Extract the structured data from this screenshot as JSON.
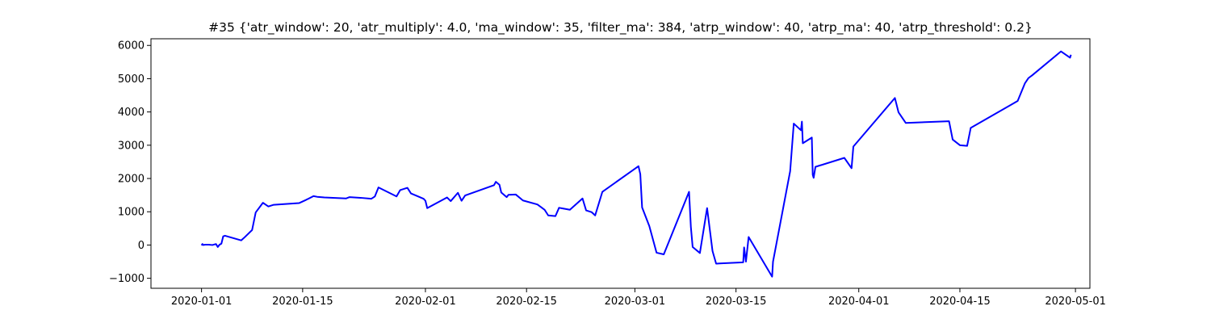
{
  "chart_data": {
    "type": "line",
    "title": "#35 {'atr_window': 20, 'atr_multiply': 4.0, 'ma_window': 35, 'filter_ma': 384, 'atrp_window': 40, 'atrp_ma': 40, 'atrp_threshold': 0.2}",
    "xlabel": "",
    "ylabel": "",
    "x_axis_type": "date",
    "xlim": [
      "2019-12-25",
      "2020-05-03"
    ],
    "ylim": [
      -1300,
      6200
    ],
    "xticks": [
      "2020-01-01",
      "2020-01-15",
      "2020-02-01",
      "2020-02-15",
      "2020-03-01",
      "2020-03-15",
      "2020-04-01",
      "2020-04-15",
      "2020-05-01"
    ],
    "yticks": [
      -1000,
      0,
      1000,
      2000,
      3000,
      4000,
      5000,
      6000
    ],
    "grid": false,
    "legend": "none",
    "series": [
      {
        "color": "#0000ff",
        "x": [
          "2020-01-01 00:00",
          "2020-01-01 03:00",
          "2020-01-01 06:00",
          "2020-01-01 12:00",
          "2020-01-02 00:00",
          "2020-01-02 12:00",
          "2020-01-03 00:00",
          "2020-01-03 06:00",
          "2020-01-03 12:00",
          "2020-01-03 18:00",
          "2020-01-04 00:00",
          "2020-01-04 06:00",
          "2020-01-06 12:00",
          "2020-01-07 00:00",
          "2020-01-08 00:00",
          "2020-01-08 12:00",
          "2020-01-09 12:00",
          "2020-01-10 06:00",
          "2020-01-11 00:00",
          "2020-01-14 12:00",
          "2020-01-15 12:00",
          "2020-01-16 12:00",
          "2020-01-17 00:00",
          "2020-01-18 00:00",
          "2020-01-21 00:00",
          "2020-01-21 12:00",
          "2020-01-23 00:00",
          "2020-01-24 12:00",
          "2020-01-25 00:00",
          "2020-01-25 12:00",
          "2020-01-28 00:00",
          "2020-01-28 12:00",
          "2020-01-29 12:00",
          "2020-01-30 00:00",
          "2020-01-31 00:00",
          "2020-01-31 18:00",
          "2020-02-01 00:00",
          "2020-02-01 06:00",
          "2020-02-04 00:00",
          "2020-02-04 12:00",
          "2020-02-05 12:00",
          "2020-02-06 00:00",
          "2020-02-06 12:00",
          "2020-02-10 12:00",
          "2020-02-10 18:00",
          "2020-02-11 06:00",
          "2020-02-11 12:00",
          "2020-02-12 06:00",
          "2020-02-12 12:00",
          "2020-02-13 12:00",
          "2020-02-14 12:00",
          "2020-02-16 12:00",
          "2020-02-17 00:00",
          "2020-02-17 12:00",
          "2020-02-18 00:00",
          "2020-02-19 00:00",
          "2020-02-19 12:00",
          "2020-02-20 00:00",
          "2020-02-21 00:00",
          "2020-02-22 18:00",
          "2020-02-23 06:00",
          "2020-02-24 00:00",
          "2020-02-24 12:00",
          "2020-02-25 12:00",
          "2020-03-01 12:00",
          "2020-03-01 18:00",
          "2020-03-02 00:00",
          "2020-03-03 00:00",
          "2020-03-04 00:00",
          "2020-03-05 00:00",
          "2020-03-08 12:00",
          "2020-03-08 18:00",
          "2020-03-09 00:00",
          "2020-03-10 00:00",
          "2020-03-11 00:00",
          "2020-03-11 18:00",
          "2020-03-12 06:00",
          "2020-03-13 00:00",
          "2020-03-16 00:00",
          "2020-03-16 03:00",
          "2020-03-16 09:00",
          "2020-03-16 18:00",
          "2020-03-20 00:00",
          "2020-03-20 03:00",
          "2020-03-22 12:00",
          "2020-03-23 00:00",
          "2020-03-24 00:00",
          "2020-03-24 03:00",
          "2020-03-24 06:00",
          "2020-03-25 12:00",
          "2020-03-25 15:00",
          "2020-03-25 18:00",
          "2020-03-26 00:00",
          "2020-03-30 00:00",
          "2020-03-31 00:00",
          "2020-03-31 06:00",
          "2020-04-06 00:00",
          "2020-04-06 12:00",
          "2020-04-07 12:00",
          "2020-04-13 12:00",
          "2020-04-14 00:00",
          "2020-04-15 00:00",
          "2020-04-16 00:00",
          "2020-04-16 12:00",
          "2020-04-23 00:00",
          "2020-04-24 00:00",
          "2020-04-24 12:00",
          "2020-04-25 00:00",
          "2020-04-29 00:00",
          "2020-04-30 06:00",
          "2020-04-30 09:00"
        ],
        "values": [
          -10,
          30,
          0,
          10,
          10,
          0,
          30,
          -60,
          10,
          40,
          260,
          280,
          140,
          240,
          450,
          980,
          1270,
          1160,
          1210,
          1260,
          1360,
          1470,
          1450,
          1430,
          1400,
          1440,
          1420,
          1390,
          1460,
          1730,
          1460,
          1650,
          1720,
          1550,
          1460,
          1390,
          1330,
          1110,
          1430,
          1320,
          1570,
          1330,
          1490,
          1800,
          1900,
          1810,
          1580,
          1440,
          1510,
          1520,
          1340,
          1220,
          1140,
          1060,
          890,
          870,
          1120,
          1100,
          1060,
          1400,
          1040,
          990,
          890,
          1600,
          2370,
          2130,
          1130,
          570,
          -230,
          -280,
          1600,
          550,
          -60,
          -240,
          1110,
          -180,
          -560,
          -550,
          -520,
          -70,
          -500,
          240,
          -950,
          -500,
          2220,
          3650,
          3450,
          3710,
          3060,
          3230,
          2110,
          2020,
          2350,
          2620,
          2310,
          2960,
          4420,
          3990,
          3670,
          3720,
          3170,
          3000,
          2980,
          3520,
          4330,
          4860,
          5020,
          5100,
          5820,
          5630,
          5720
        ]
      }
    ]
  }
}
